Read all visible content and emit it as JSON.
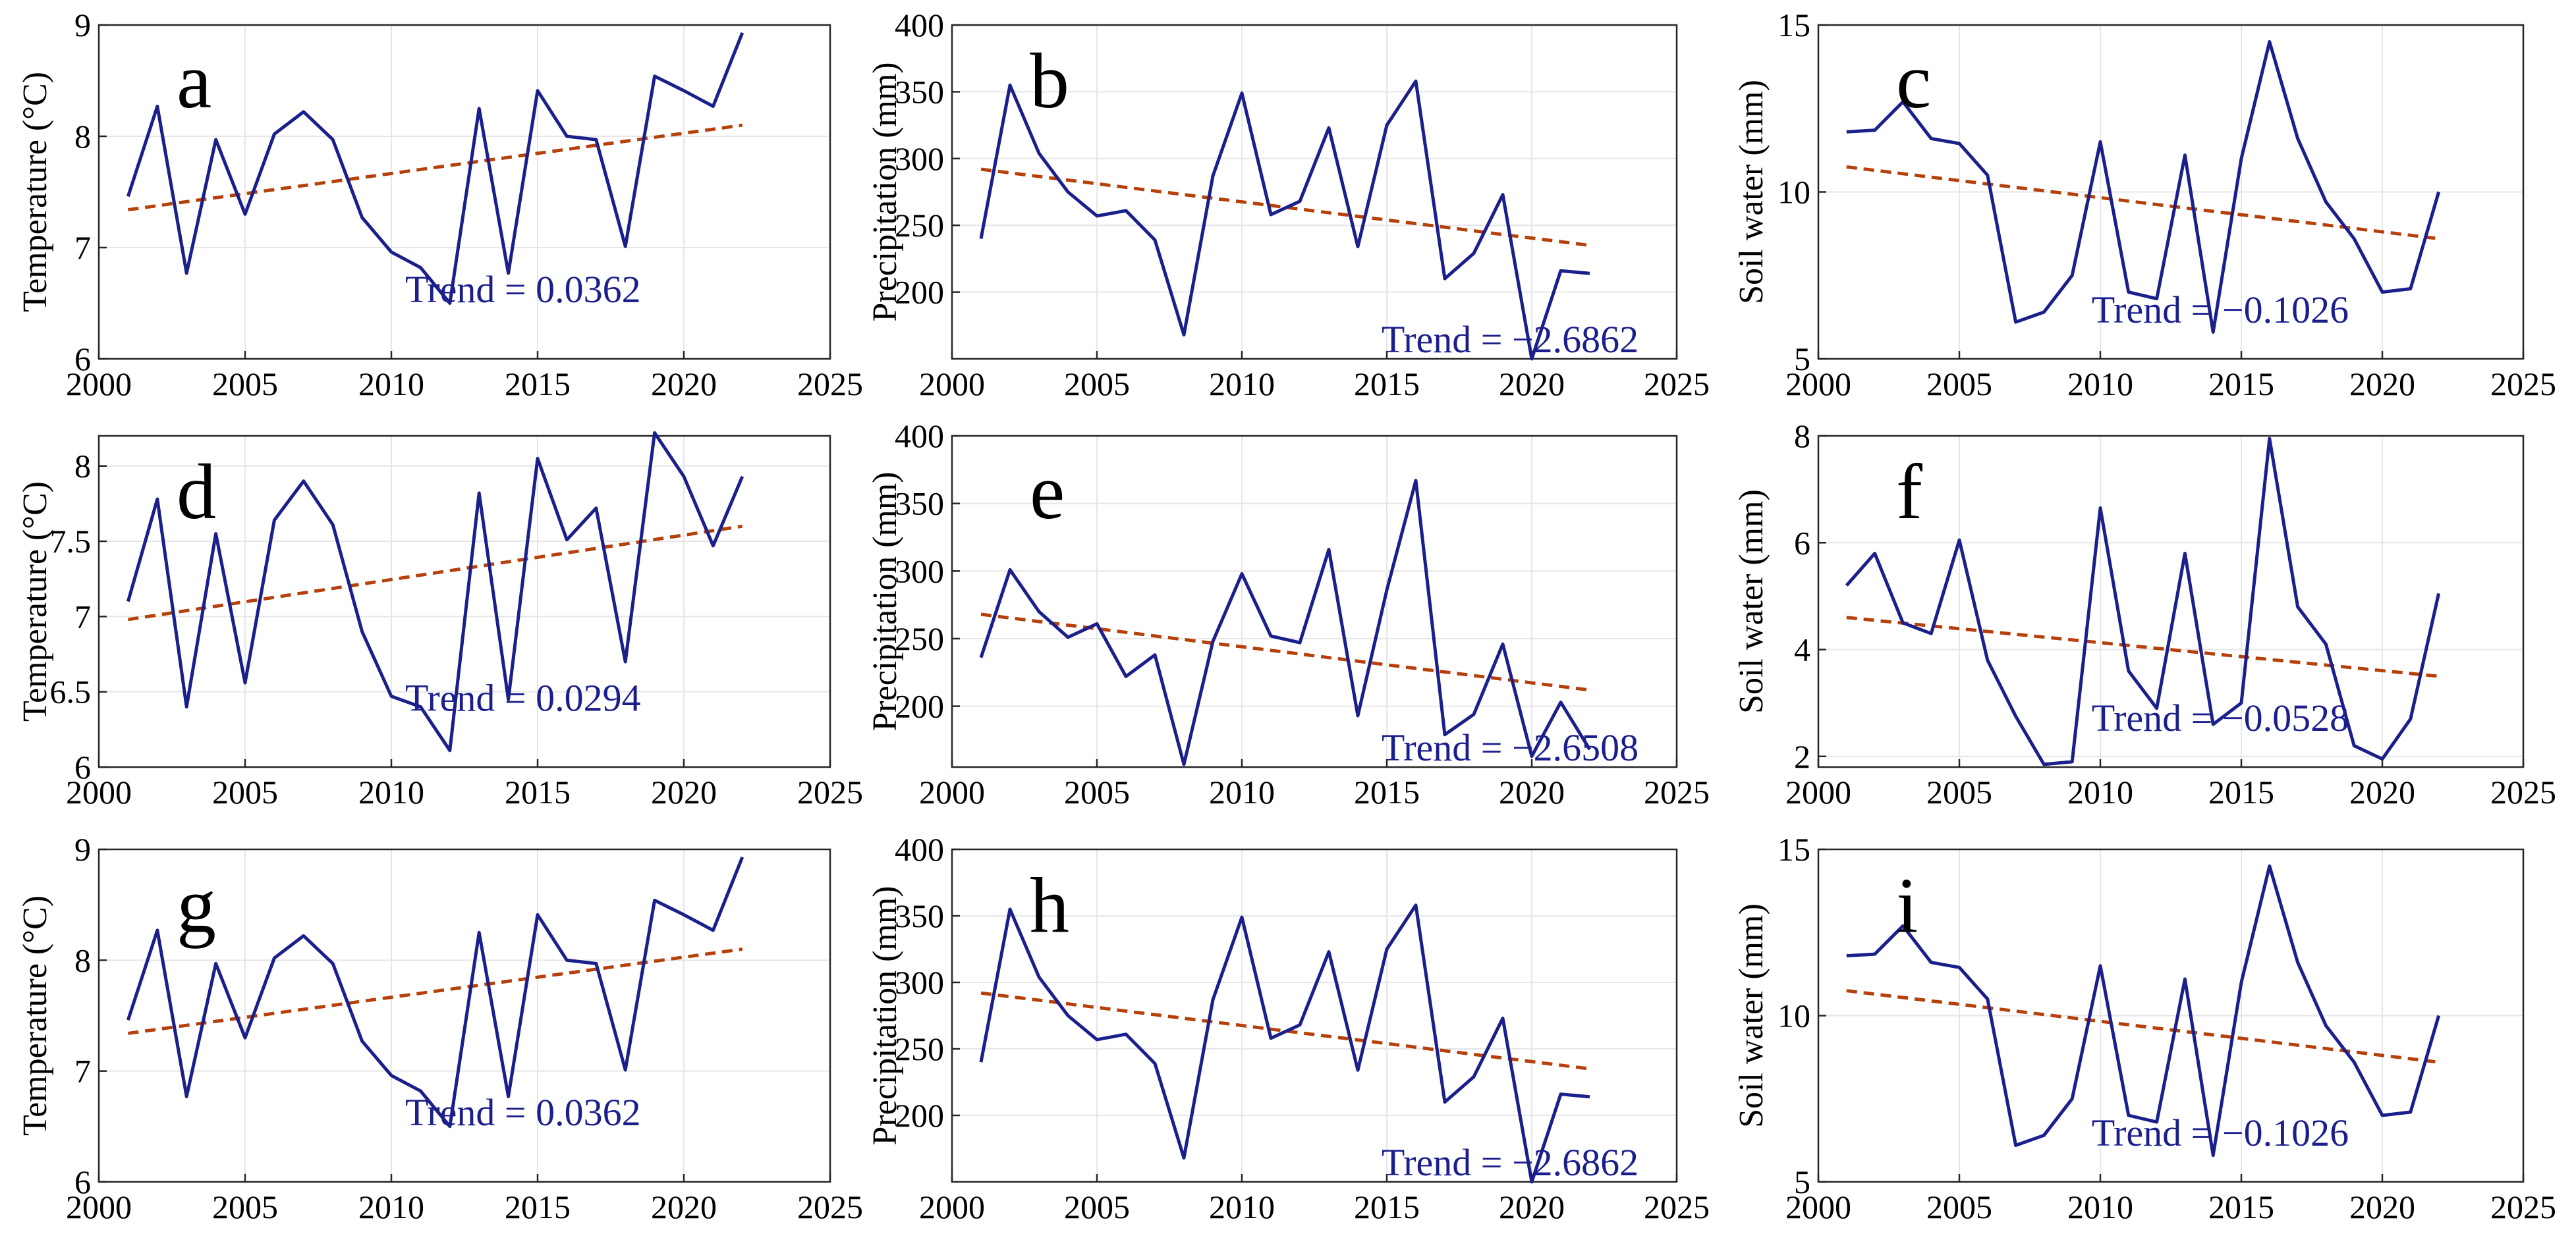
{
  "colors": {
    "series": "#1a1f8c",
    "trend": "#b5400a",
    "grid": "#e6e6e6",
    "axis": "#262626"
  },
  "chart_data": [
    {
      "panel": "a",
      "type": "line",
      "ylabel": "Temperature (°C)",
      "xlabel": "",
      "xlim": [
        2000,
        2025
      ],
      "xticks": [
        2000,
        2005,
        2010,
        2015,
        2020,
        2025
      ],
      "ylim": [
        6,
        9
      ],
      "yticks": [
        6,
        7,
        8,
        9
      ],
      "x": [
        2001,
        2002,
        2003,
        2004,
        2005,
        2006,
        2007,
        2008,
        2009,
        2010,
        2011,
        2012,
        2013,
        2014,
        2015,
        2016,
        2017,
        2018,
        2019,
        2020,
        2021,
        2022
      ],
      "values": [
        7.46,
        8.27,
        6.77,
        7.97,
        7.3,
        8.02,
        8.22,
        7.97,
        7.27,
        6.96,
        6.82,
        6.5,
        8.25,
        6.77,
        8.41,
        8.0,
        7.97,
        7.01,
        8.54,
        8.41,
        8.27,
        8.93
      ],
      "trend_line": [
        [
          2001,
          7.34
        ],
        [
          2022,
          8.1
        ]
      ],
      "trend_text": "Trend = 0.0362"
    },
    {
      "panel": "b",
      "type": "line",
      "ylabel": "Precipitation (mm)",
      "xlabel": "",
      "xlim": [
        2000,
        2025
      ],
      "xticks": [
        2000,
        2005,
        2010,
        2015,
        2020,
        2025
      ],
      "ylim": [
        150,
        400
      ],
      "yticks": [
        200,
        250,
        300,
        350,
        400
      ],
      "x": [
        2001,
        2002,
        2003,
        2004,
        2005,
        2006,
        2007,
        2008,
        2009,
        2010,
        2011,
        2012,
        2013,
        2014,
        2015,
        2016,
        2017,
        2018,
        2019,
        2020,
        2021,
        2022
      ],
      "values": [
        240,
        355,
        304,
        275,
        257,
        261,
        239,
        168,
        287,
        349,
        258,
        268,
        323,
        234,
        325,
        358,
        210,
        229,
        273,
        150,
        216,
        214
      ],
      "trend_line": [
        [
          2001,
          292
        ],
        [
          2022,
          235
        ]
      ],
      "trend_text": "Trend = −2.6862"
    },
    {
      "panel": "c",
      "type": "line",
      "ylabel": "Soil water (mm)",
      "xlabel": "",
      "xlim": [
        2000,
        2025
      ],
      "xticks": [
        2000,
        2005,
        2010,
        2015,
        2020,
        2025
      ],
      "ylim": [
        5,
        15
      ],
      "yticks": [
        5,
        10,
        15
      ],
      "x": [
        2001,
        2002,
        2003,
        2004,
        2005,
        2006,
        2007,
        2008,
        2009,
        2010,
        2011,
        2012,
        2013,
        2014,
        2015,
        2016,
        2017,
        2018,
        2019,
        2020,
        2021,
        2022
      ],
      "values": [
        11.8,
        11.85,
        12.7,
        11.6,
        11.45,
        10.5,
        6.1,
        6.4,
        7.5,
        11.5,
        7.0,
        6.8,
        11.1,
        5.8,
        11.0,
        14.5,
        11.6,
        9.7,
        8.6,
        7.0,
        7.1,
        10.0
      ],
      "trend_line": [
        [
          2001,
          10.75
        ],
        [
          2022,
          8.6
        ]
      ],
      "trend_text": "Trend = −0.1026"
    },
    {
      "panel": "d",
      "type": "line",
      "ylabel": "Temperature (°C)",
      "xlabel": "",
      "xlim": [
        2000,
        2025
      ],
      "xticks": [
        2000,
        2005,
        2010,
        2015,
        2020,
        2025
      ],
      "ylim": [
        6,
        8.2
      ],
      "yticks": [
        6,
        6.5,
        7,
        7.5,
        8
      ],
      "ytick_labels": [
        "6",
        "6.5",
        "7",
        "7.5",
        "8"
      ],
      "x": [
        2001,
        2002,
        2003,
        2004,
        2005,
        2006,
        2007,
        2008,
        2009,
        2010,
        2011,
        2012,
        2013,
        2014,
        2015,
        2016,
        2017,
        2018,
        2019,
        2020,
        2021,
        2022
      ],
      "values": [
        7.1,
        7.78,
        6.4,
        7.55,
        6.56,
        7.64,
        7.9,
        7.61,
        6.9,
        6.47,
        6.4,
        6.11,
        7.82,
        6.45,
        8.05,
        7.51,
        7.72,
        6.7,
        8.22,
        7.93,
        7.47,
        7.93
      ],
      "trend_line": [
        [
          2001,
          6.98
        ],
        [
          2022,
          7.6
        ]
      ],
      "trend_text": "Trend = 0.0294"
    },
    {
      "panel": "e",
      "type": "line",
      "ylabel": "Precipitation (mm)",
      "xlabel": "",
      "xlim": [
        2000,
        2025
      ],
      "xticks": [
        2000,
        2005,
        2010,
        2015,
        2020,
        2025
      ],
      "ylim": [
        155,
        400
      ],
      "yticks": [
        200,
        250,
        300,
        350,
        400
      ],
      "x": [
        2001,
        2002,
        2003,
        2004,
        2005,
        2006,
        2007,
        2008,
        2009,
        2010,
        2011,
        2012,
        2013,
        2014,
        2015,
        2016,
        2017,
        2018,
        2019,
        2020,
        2021,
        2022
      ],
      "values": [
        236,
        301,
        270,
        251,
        261,
        222,
        238,
        157,
        248,
        298,
        252,
        247,
        316,
        193,
        286,
        367,
        179,
        194,
        246,
        163,
        203,
        168
      ],
      "trend_line": [
        [
          2001,
          268
        ],
        [
          2022,
          212
        ]
      ],
      "trend_text": "Trend = −2.6508"
    },
    {
      "panel": "f",
      "type": "line",
      "ylabel": "Soil water (mm)",
      "xlabel": "",
      "xlim": [
        2000,
        2025
      ],
      "xticks": [
        2000,
        2005,
        2010,
        2015,
        2020,
        2025
      ],
      "ylim": [
        1.8,
        8
      ],
      "yticks": [
        2,
        4,
        6,
        8
      ],
      "x": [
        2001,
        2002,
        2003,
        2004,
        2005,
        2006,
        2007,
        2008,
        2009,
        2010,
        2011,
        2012,
        2013,
        2014,
        2015,
        2016,
        2017,
        2018,
        2019,
        2020,
        2021,
        2022
      ],
      "values": [
        5.2,
        5.8,
        4.5,
        4.3,
        6.05,
        3.8,
        2.75,
        1.85,
        1.9,
        6.65,
        3.6,
        2.9,
        5.8,
        2.6,
        3.0,
        7.95,
        4.8,
        4.1,
        2.2,
        1.95,
        2.7,
        5.05
      ],
      "trend_line": [
        [
          2001,
          4.6
        ],
        [
          2022,
          3.5
        ]
      ],
      "trend_text": "Trend = −0.0528"
    },
    {
      "panel": "g",
      "type": "line",
      "ylabel": "Temperature (°C)",
      "xlabel": "",
      "xlim": [
        2000,
        2025
      ],
      "xticks": [
        2000,
        2005,
        2010,
        2015,
        2020,
        2025
      ],
      "ylim": [
        6,
        9
      ],
      "yticks": [
        6,
        7,
        8,
        9
      ],
      "x": [
        2001,
        2002,
        2003,
        2004,
        2005,
        2006,
        2007,
        2008,
        2009,
        2010,
        2011,
        2012,
        2013,
        2014,
        2015,
        2016,
        2017,
        2018,
        2019,
        2020,
        2021,
        2022
      ],
      "values": [
        7.46,
        8.27,
        6.77,
        7.97,
        7.3,
        8.02,
        8.22,
        7.97,
        7.27,
        6.96,
        6.82,
        6.5,
        8.25,
        6.77,
        8.41,
        8.0,
        7.97,
        7.01,
        8.54,
        8.41,
        8.27,
        8.93
      ],
      "trend_line": [
        [
          2001,
          7.34
        ],
        [
          2022,
          8.1
        ]
      ],
      "trend_text": "Trend = 0.0362"
    },
    {
      "panel": "h",
      "type": "line",
      "ylabel": "Precipitation (mm)",
      "xlabel": "",
      "xlim": [
        2000,
        2025
      ],
      "xticks": [
        2000,
        2005,
        2010,
        2015,
        2020,
        2025
      ],
      "ylim": [
        150,
        400
      ],
      "yticks": [
        200,
        250,
        300,
        350,
        400
      ],
      "x": [
        2001,
        2002,
        2003,
        2004,
        2005,
        2006,
        2007,
        2008,
        2009,
        2010,
        2011,
        2012,
        2013,
        2014,
        2015,
        2016,
        2017,
        2018,
        2019,
        2020,
        2021,
        2022
      ],
      "values": [
        240,
        355,
        304,
        275,
        257,
        261,
        239,
        168,
        287,
        349,
        258,
        268,
        323,
        234,
        325,
        358,
        210,
        229,
        273,
        150,
        216,
        214
      ],
      "trend_line": [
        [
          2001,
          292
        ],
        [
          2022,
          235
        ]
      ],
      "trend_text": "Trend = −2.6862"
    },
    {
      "panel": "i",
      "type": "line",
      "ylabel": "Soil water (mm)",
      "xlabel": "",
      "xlim": [
        2000,
        2025
      ],
      "xticks": [
        2000,
        2005,
        2010,
        2015,
        2020,
        2025
      ],
      "ylim": [
        5,
        15
      ],
      "yticks": [
        5,
        10,
        15
      ],
      "x": [
        2001,
        2002,
        2003,
        2004,
        2005,
        2006,
        2007,
        2008,
        2009,
        2010,
        2011,
        2012,
        2013,
        2014,
        2015,
        2016,
        2017,
        2018,
        2019,
        2020,
        2021,
        2022
      ],
      "values": [
        11.8,
        11.85,
        12.7,
        11.6,
        11.45,
        10.5,
        6.1,
        6.4,
        7.5,
        11.5,
        7.0,
        6.8,
        11.1,
        5.8,
        11.0,
        14.5,
        11.6,
        9.7,
        8.6,
        7.0,
        7.1,
        10.0
      ],
      "trend_line": [
        [
          2001,
          10.75
        ],
        [
          2022,
          8.6
        ]
      ],
      "trend_text": "Trend = −0.1026"
    }
  ]
}
